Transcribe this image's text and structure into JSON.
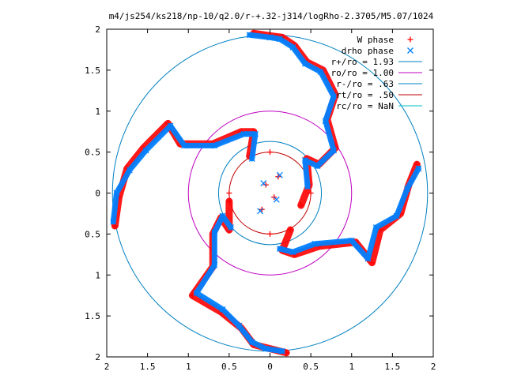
{
  "chart_data": {
    "type": "scatter",
    "title": "m4/js254/ks218/np-10/q2.0/r-+.32-j314/logRho-2.3705/M5.07/1024",
    "xlim": [
      -2,
      2
    ],
    "ylim": [
      -2,
      2
    ],
    "xticks": [
      {
        "value": -2,
        "label": "2"
      },
      {
        "value": -1.5,
        "label": "1.5"
      },
      {
        "value": -1,
        "label": "1"
      },
      {
        "value": -0.5,
        "label": "0.5"
      },
      {
        "value": 0,
        "label": "0"
      },
      {
        "value": 0.5,
        "label": "0.5"
      },
      {
        "value": 1,
        "label": "1"
      },
      {
        "value": 1.5,
        "label": "1.5"
      },
      {
        "value": 2,
        "label": "2"
      }
    ],
    "yticks": [
      {
        "value": 2,
        "label": "2"
      },
      {
        "value": 1.5,
        "label": "1.5"
      },
      {
        "value": 1,
        "label": "1"
      },
      {
        "value": 0.5,
        "label": "0.5"
      },
      {
        "value": 0,
        "label": "0"
      },
      {
        "value": -0.5,
        "label": "0.5"
      },
      {
        "value": -1,
        "label": "1"
      },
      {
        "value": -1.5,
        "label": "1.5"
      },
      {
        "value": -2,
        "label": "2"
      }
    ],
    "grid": false,
    "legend_position": "top-right",
    "legend": [
      {
        "label": "W phase",
        "marker": "plus",
        "color": "#ff0000"
      },
      {
        "label": "drho phase",
        "marker": "cross",
        "color": "#0080ff"
      },
      {
        "label": "r+/ro = 1.93",
        "line": true,
        "color": "#0080c0"
      },
      {
        "label": "ro/ro = 1.00",
        "line": true,
        "color": "#c000c0"
      },
      {
        "label": "r-/ro = .63",
        "line": true,
        "color": "#0080c0"
      },
      {
        "label": "rt/ro = .50",
        "line": true,
        "color": "#c00000"
      },
      {
        "label": "rc/ro = NaN",
        "line": true,
        "color": "#00c0c0"
      }
    ],
    "circles": [
      {
        "name": "r+/ro",
        "radius": 1.93,
        "color": "#0080c0"
      },
      {
        "name": "ro/ro",
        "radius": 1.0,
        "color": "#c000c0"
      },
      {
        "name": "r-/ro",
        "radius": 0.63,
        "color": "#0080c0"
      },
      {
        "name": "rt/ro",
        "radius": 0.5,
        "color": "#c00000"
      }
    ],
    "series": [
      {
        "name": "W phase",
        "color": "#ff0000",
        "points": [
          [
            -0.2,
            1.95
          ],
          [
            0.0,
            1.92
          ],
          [
            0.15,
            1.9
          ],
          [
            0.3,
            1.8
          ],
          [
            0.45,
            1.6
          ],
          [
            0.65,
            1.5
          ],
          [
            0.8,
            1.2
          ],
          [
            0.7,
            0.9
          ],
          [
            0.8,
            0.55
          ],
          [
            0.6,
            0.35
          ],
          [
            0.45,
            0.42
          ],
          [
            0.48,
            0.1
          ],
          [
            0.38,
            -0.15
          ],
          [
            1.8,
            0.35
          ],
          [
            1.7,
            0.1
          ],
          [
            1.6,
            -0.25
          ],
          [
            1.35,
            -0.45
          ],
          [
            1.25,
            -0.85
          ],
          [
            1.05,
            -0.6
          ],
          [
            0.6,
            -0.65
          ],
          [
            0.3,
            -0.75
          ],
          [
            0.15,
            -0.7
          ],
          [
            0.25,
            -0.45
          ],
          [
            0.2,
            -1.95
          ],
          [
            0.0,
            -1.9
          ],
          [
            -0.2,
            -1.85
          ],
          [
            -0.35,
            -1.65
          ],
          [
            -0.6,
            -1.45
          ],
          [
            -0.95,
            -1.25
          ],
          [
            -0.7,
            -0.9
          ],
          [
            -0.7,
            -0.5
          ],
          [
            -0.6,
            -0.3
          ],
          [
            -0.5,
            -0.45
          ],
          [
            -0.5,
            -0.1
          ],
          [
            -1.9,
            -0.4
          ],
          [
            -1.85,
            -0.05
          ],
          [
            -1.75,
            0.3
          ],
          [
            -1.55,
            0.55
          ],
          [
            -1.25,
            0.85
          ],
          [
            -1.1,
            0.6
          ],
          [
            -0.7,
            0.6
          ],
          [
            -0.35,
            0.75
          ],
          [
            -0.2,
            0.75
          ],
          [
            -0.25,
            0.45
          ],
          [
            -0.05,
            0.1
          ],
          [
            0.05,
            -0.05
          ],
          [
            0.1,
            0.2
          ],
          [
            -0.1,
            -0.2
          ],
          [
            0.0,
            0.5
          ],
          [
            0.0,
            -0.5
          ],
          [
            -0.5,
            0.0
          ],
          [
            0.5,
            0.0
          ]
        ]
      },
      {
        "name": "drho phase",
        "color": "#0080ff",
        "points": [
          [
            -0.25,
            1.93
          ],
          [
            0.0,
            1.9
          ],
          [
            0.12,
            1.88
          ],
          [
            0.28,
            1.78
          ],
          [
            0.43,
            1.58
          ],
          [
            0.62,
            1.48
          ],
          [
            0.78,
            1.18
          ],
          [
            0.68,
            0.88
          ],
          [
            0.78,
            0.52
          ],
          [
            0.58,
            0.33
          ],
          [
            0.43,
            0.4
          ],
          [
            0.46,
            0.08
          ],
          [
            1.82,
            0.3
          ],
          [
            1.68,
            0.05
          ],
          [
            1.55,
            -0.28
          ],
          [
            1.3,
            -0.42
          ],
          [
            1.2,
            -0.8
          ],
          [
            1.0,
            -0.58
          ],
          [
            0.55,
            -0.62
          ],
          [
            0.28,
            -0.72
          ],
          [
            0.12,
            -0.68
          ],
          [
            0.15,
            -1.93
          ],
          [
            -0.05,
            -1.9
          ],
          [
            -0.22,
            -1.82
          ],
          [
            -0.38,
            -1.62
          ],
          [
            -0.58,
            -1.42
          ],
          [
            -0.9,
            -1.22
          ],
          [
            -0.68,
            -0.88
          ],
          [
            -0.68,
            -0.48
          ],
          [
            -0.58,
            -0.28
          ],
          [
            -0.48,
            -0.42
          ],
          [
            -1.92,
            -0.35
          ],
          [
            -1.88,
            0.0
          ],
          [
            -1.72,
            0.28
          ],
          [
            -1.52,
            0.52
          ],
          [
            -1.22,
            0.82
          ],
          [
            -1.05,
            0.58
          ],
          [
            -0.68,
            0.58
          ],
          [
            -0.32,
            0.72
          ],
          [
            -0.18,
            0.72
          ],
          [
            -0.22,
            0.42
          ],
          [
            -0.08,
            0.12
          ],
          [
            0.08,
            -0.08
          ],
          [
            0.12,
            0.22
          ],
          [
            -0.12,
            -0.22
          ]
        ]
      }
    ]
  }
}
